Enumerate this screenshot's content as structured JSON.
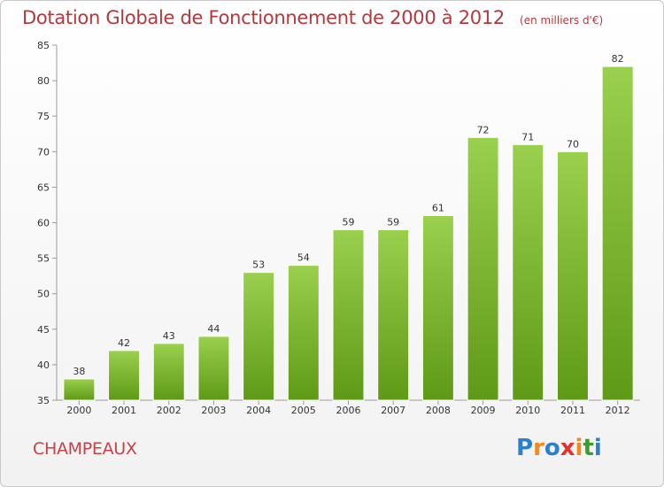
{
  "title": "Dotation Globale de Fonctionnement de 2000 à 2012",
  "unit": "(en milliers d'€)",
  "commune": "CHAMPEAUX",
  "logo": {
    "letters": [
      "P",
      "r",
      "o",
      "x",
      "i",
      "t",
      "i"
    ],
    "colors": [
      "#2a7fd1",
      "#f08a1c",
      "#2a7fd1",
      "#e0342c",
      "#f08a1c",
      "#3a9e2e",
      "#2a7fd1"
    ]
  },
  "colors": {
    "bar_light": "#9ad04e",
    "bar_dark": "#5e9a16",
    "title": "#b13a3f"
  },
  "chart_data": {
    "type": "bar",
    "categories": [
      "2000",
      "2001",
      "2002",
      "2003",
      "2004",
      "2005",
      "2006",
      "2007",
      "2008",
      "2009",
      "2010",
      "2011",
      "2012"
    ],
    "values": [
      38,
      42,
      43,
      44,
      53,
      54,
      59,
      59,
      61,
      72,
      71,
      70,
      82
    ],
    "ylim": [
      35,
      85
    ],
    "yticks": [
      35,
      40,
      45,
      50,
      55,
      60,
      65,
      70,
      75,
      80,
      85
    ],
    "grid": false,
    "data_labels": true
  }
}
